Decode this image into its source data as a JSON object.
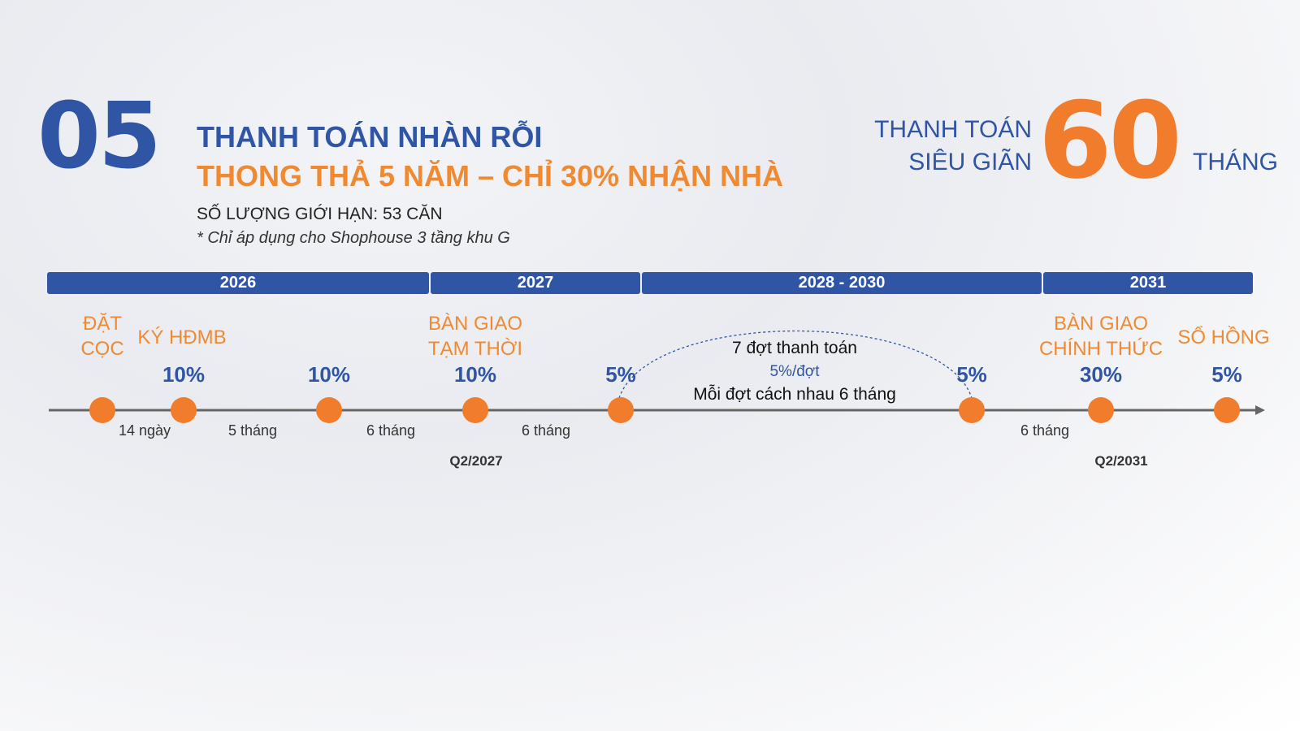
{
  "header": {
    "number": "05",
    "title_line1": "THANH TOÁN NHÀN RỖI",
    "title_line2": "THONG THẢ 5 NĂM – CHỈ 30% NHẬN NHÀ",
    "limit": "SỐ LƯỢNG GIỚI HẠN: 53 CĂN",
    "note": "* Chỉ áp dụng cho Shophouse 3 tầng khu G"
  },
  "highlight": {
    "line1": "THANH TOÁN",
    "line2": "SIÊU GIÃN",
    "number": "60",
    "unit": "THÁNG"
  },
  "years": [
    "2026",
    "2027",
    "2028 - 2030",
    "2031"
  ],
  "milestones": [
    {
      "label": "ĐẶT\nCỌC",
      "percent": ""
    },
    {
      "label": "KÝ HĐMB",
      "percent": "10%"
    },
    {
      "label": "",
      "percent": "10%"
    },
    {
      "label": "BÀN GIAO\nTẠM THỜI",
      "percent": "10%"
    },
    {
      "label": "",
      "percent": "5%"
    },
    {
      "label": "",
      "percent": "5%"
    },
    {
      "label": "BÀN GIAO\nCHÍNH THỨC",
      "percent": "30%"
    },
    {
      "label": "SỔ HỒNG",
      "percent": "5%"
    }
  ],
  "intervals": [
    "14 ngày",
    "5 tháng",
    "6 tháng",
    "6 tháng",
    "6 tháng"
  ],
  "quarters": [
    "Q2/2027",
    "Q2/2031"
  ],
  "installments": {
    "line1": "7 đợt thanh toán",
    "line2": "5%/đợt",
    "line3": "Mỗi đợt cách nhau 6 tháng"
  },
  "colors": {
    "blue": "#2f55a4",
    "orange": "#f07c2c"
  }
}
